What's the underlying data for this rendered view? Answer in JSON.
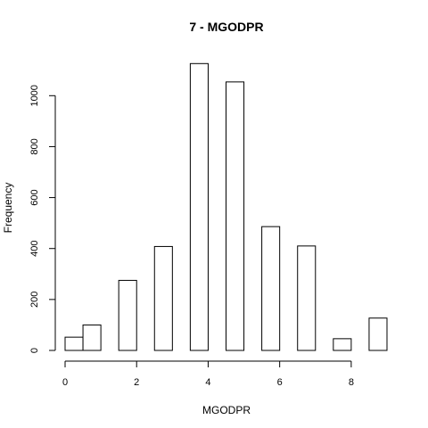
{
  "chart_data": {
    "type": "bar",
    "title": "7 - MGODPR",
    "xlabel": "MGODPR",
    "ylabel": "Frequency",
    "xlim": [
      0,
      9
    ],
    "ylim": [
      0,
      1120
    ],
    "xticks": [
      0,
      2,
      4,
      6,
      8
    ],
    "yticks": [
      0,
      200,
      400,
      600,
      800,
      1000
    ],
    "bins": [
      {
        "x0": 0.0,
        "x1": 0.5,
        "count": 52
      },
      {
        "x0": 0.5,
        "x1": 1.0,
        "count": 100
      },
      {
        "x0": 1.0,
        "x1": 1.5,
        "count": 0
      },
      {
        "x0": 1.5,
        "x1": 2.0,
        "count": 275
      },
      {
        "x0": 2.0,
        "x1": 2.5,
        "count": 0
      },
      {
        "x0": 2.5,
        "x1": 3.0,
        "count": 408
      },
      {
        "x0": 3.0,
        "x1": 3.5,
        "count": 0
      },
      {
        "x0": 3.5,
        "x1": 4.0,
        "count": 1126
      },
      {
        "x0": 4.0,
        "x1": 4.5,
        "count": 0
      },
      {
        "x0": 4.5,
        "x1": 5.0,
        "count": 1054
      },
      {
        "x0": 5.0,
        "x1": 5.5,
        "count": 0
      },
      {
        "x0": 5.5,
        "x1": 6.0,
        "count": 486
      },
      {
        "x0": 6.0,
        "x1": 6.5,
        "count": 0
      },
      {
        "x0": 6.5,
        "x1": 7.0,
        "count": 410
      },
      {
        "x0": 7.0,
        "x1": 7.5,
        "count": 0
      },
      {
        "x0": 7.5,
        "x1": 8.0,
        "count": 46
      },
      {
        "x0": 8.0,
        "x1": 8.5,
        "count": 0
      },
      {
        "x0": 8.5,
        "x1": 9.0,
        "count": 127
      }
    ],
    "grid": false,
    "legend": "none"
  }
}
